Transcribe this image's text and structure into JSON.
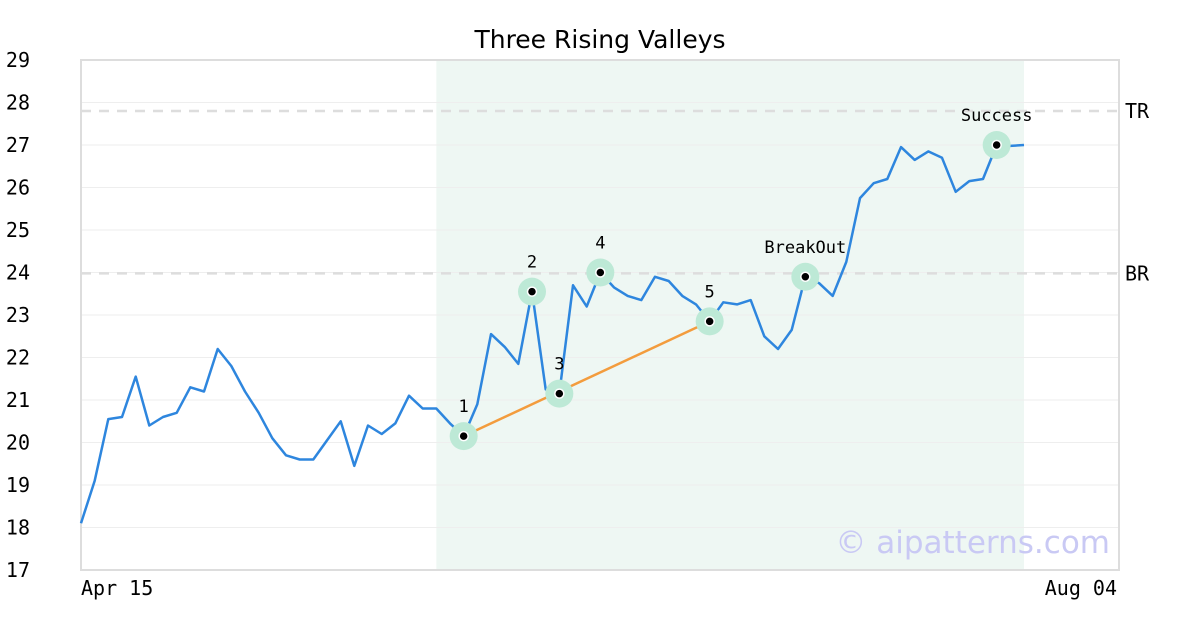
{
  "chart_data": {
    "type": "line",
    "title": "Three Rising Valleys",
    "xlabel": "",
    "ylabel": "",
    "ylim": [
      17,
      29
    ],
    "yticks": [
      17,
      18,
      19,
      20,
      21,
      22,
      23,
      24,
      25,
      26,
      27,
      28,
      29
    ],
    "x_tick_labels": [
      "Apr 15",
      "Aug 04"
    ],
    "grid": true,
    "legend": "none",
    "colors": {
      "price": "#2e86de",
      "trendline": "#f39c3d",
      "highlight": "#eef7f3",
      "marker_halo": "#bde9d6",
      "level_line": "#dddddd",
      "axis": "#dddddd",
      "watermark": "#c9c9f4"
    },
    "series": [
      {
        "values": [
          18.1,
          19.1,
          20.55,
          20.6,
          21.55,
          20.4,
          20.6,
          20.7,
          21.3,
          21.2,
          22.2,
          21.8,
          21.2,
          20.7,
          20.1,
          19.7,
          19.6,
          19.6,
          20.05,
          20.5,
          19.45,
          20.4,
          20.2,
          20.45,
          21.1,
          20.8,
          20.8,
          20.45,
          20.15,
          20.9,
          22.55,
          22.25,
          21.85,
          23.55,
          21.25,
          21.15,
          23.7,
          23.2,
          24.0,
          23.65,
          23.45,
          23.35,
          23.9,
          23.8,
          23.45,
          23.25,
          22.85,
          23.3,
          23.25,
          23.35,
          22.5,
          22.2,
          22.65,
          23.9,
          23.75,
          23.45,
          24.25,
          25.75,
          26.1,
          26.2,
          26.95,
          26.65,
          26.85,
          26.7,
          25.9,
          26.15,
          26.2,
          27.0,
          26.98,
          27.0
        ]
      }
    ],
    "highlight_range": {
      "start_index": 26,
      "end_index": 69
    },
    "levels": [
      {
        "label": "TR",
        "value": 27.8
      },
      {
        "label": "BR",
        "value": 23.98
      }
    ],
    "trendline": {
      "from_index": 28,
      "from_value": 20.15,
      "to_index": 46,
      "to_value": 22.85
    },
    "points": [
      {
        "label": "1",
        "index": 28,
        "value": 20.15,
        "label_pos": "above"
      },
      {
        "label": "2",
        "index": 33,
        "value": 23.55,
        "label_pos": "above"
      },
      {
        "label": "3",
        "index": 35,
        "value": 21.15,
        "label_pos": "above"
      },
      {
        "label": "4",
        "index": 38,
        "value": 24.0,
        "label_pos": "above"
      },
      {
        "label": "5",
        "index": 46,
        "value": 22.85,
        "label_pos": "above"
      },
      {
        "label": "BreakOut",
        "index": 53,
        "value": 23.9,
        "label_pos": "above"
      },
      {
        "label": "Success",
        "index": 67,
        "value": 27.0,
        "label_pos": "above"
      }
    ],
    "watermark": "© aipatterns.com"
  }
}
